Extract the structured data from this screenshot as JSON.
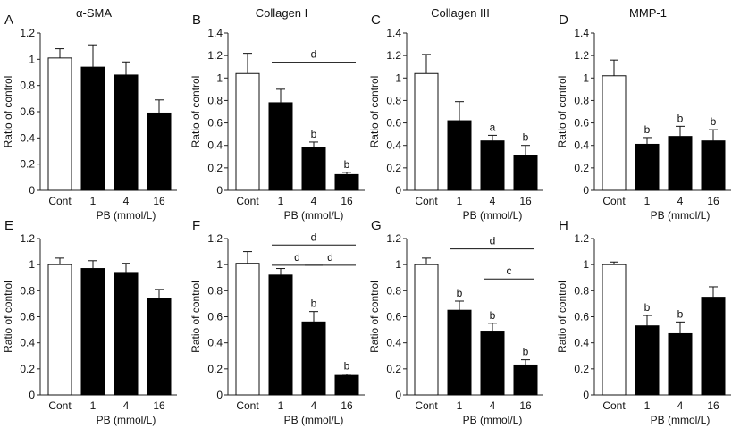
{
  "figure": {
    "xlabel": "PB (mmol/L)",
    "ylabel": "Ratio of control",
    "panels": [
      {
        "letter": "A",
        "title": "α-SMA"
      },
      {
        "letter": "B",
        "title": "Collagen I"
      },
      {
        "letter": "C",
        "title": "Collagen III"
      },
      {
        "letter": "D",
        "title": "MMP-1"
      },
      {
        "letter": "E",
        "title": ""
      },
      {
        "letter": "F",
        "title": ""
      },
      {
        "letter": "G",
        "title": ""
      },
      {
        "letter": "H",
        "title": ""
      }
    ]
  },
  "chart_data": [
    {
      "type": "bar",
      "panel": "A",
      "title": "α-SMA",
      "xlabel": "PB (mmol/L)",
      "ylabel": "Ratio of control",
      "categories": [
        "Cont",
        "1",
        "4",
        "16"
      ],
      "values": [
        1.01,
        0.94,
        0.88,
        0.59
      ],
      "errors": [
        0.07,
        0.17,
        0.1,
        0.1
      ],
      "sig_labels": [
        "",
        "",
        "",
        ""
      ],
      "brackets": [],
      "ylim": [
        0,
        1.2
      ],
      "yticks": [
        0,
        0.2,
        0.4,
        0.6,
        0.8,
        1,
        1.2
      ]
    },
    {
      "type": "bar",
      "panel": "B",
      "title": "Collagen I",
      "xlabel": "PB (mmol/L)",
      "ylabel": "Ratio of control",
      "categories": [
        "Cont",
        "1",
        "4",
        "16"
      ],
      "values": [
        1.04,
        0.78,
        0.38,
        0.14
      ],
      "errors": [
        0.18,
        0.12,
        0.05,
        0.02
      ],
      "sig_labels": [
        "",
        "",
        "b",
        "b"
      ],
      "brackets": [
        {
          "from": 1,
          "to": 3,
          "y": 1.14,
          "label": "d"
        }
      ],
      "ylim": [
        0,
        1.4
      ],
      "yticks": [
        0,
        0.2,
        0.4,
        0.6,
        0.8,
        1,
        1.2,
        1.4
      ]
    },
    {
      "type": "bar",
      "panel": "C",
      "title": "Collagen III",
      "xlabel": "PB (mmol/L)",
      "ylabel": "Ratio of control",
      "categories": [
        "Cont",
        "1",
        "4",
        "16"
      ],
      "values": [
        1.04,
        0.62,
        0.44,
        0.31
      ],
      "errors": [
        0.17,
        0.17,
        0.05,
        0.09
      ],
      "sig_labels": [
        "",
        "",
        "a",
        "b"
      ],
      "brackets": [],
      "ylim": [
        0,
        1.4
      ],
      "yticks": [
        0,
        0.2,
        0.4,
        0.6,
        0.8,
        1,
        1.2,
        1.4
      ]
    },
    {
      "type": "bar",
      "panel": "D",
      "title": "MMP-1",
      "xlabel": "PB (mmol/L)",
      "ylabel": "Ratio of control",
      "categories": [
        "Cont",
        "1",
        "4",
        "16"
      ],
      "values": [
        1.02,
        0.41,
        0.48,
        0.44
      ],
      "errors": [
        0.14,
        0.06,
        0.09,
        0.1
      ],
      "sig_labels": [
        "",
        "b",
        "b",
        "b"
      ],
      "brackets": [],
      "ylim": [
        0,
        1.4
      ],
      "yticks": [
        0,
        0.2,
        0.4,
        0.6,
        0.8,
        1,
        1.2,
        1.4
      ]
    },
    {
      "type": "bar",
      "panel": "E",
      "title": "",
      "xlabel": "PB (mmol/L)",
      "ylabel": "Ratio of control",
      "categories": [
        "Cont",
        "1",
        "4",
        "16"
      ],
      "values": [
        1.0,
        0.97,
        0.94,
        0.74
      ],
      "errors": [
        0.05,
        0.06,
        0.07,
        0.07
      ],
      "sig_labels": [
        "",
        "",
        "",
        ""
      ],
      "brackets": [],
      "ylim": [
        0,
        1.2
      ],
      "yticks": [
        0,
        0.2,
        0.4,
        0.6,
        0.8,
        1,
        1.2
      ]
    },
    {
      "type": "bar",
      "panel": "F",
      "title": "",
      "xlabel": "PB (mmol/L)",
      "ylabel": "Ratio of control",
      "categories": [
        "Cont",
        "1",
        "4",
        "16"
      ],
      "values": [
        1.01,
        0.92,
        0.56,
        0.15
      ],
      "errors": [
        0.09,
        0.05,
        0.08,
        0.01
      ],
      "sig_labels": [
        "",
        "",
        "b",
        "b"
      ],
      "brackets": [
        {
          "from": 1,
          "to": 3,
          "y": 1.15,
          "label": "d"
        },
        {
          "from": 1,
          "to": 2,
          "y": 0.995,
          "label": "d"
        },
        {
          "from": 2,
          "to": 3,
          "y": 0.995,
          "label": "d"
        }
      ],
      "ylim": [
        0,
        1.2
      ],
      "yticks": [
        0,
        0.2,
        0.4,
        0.6,
        0.8,
        1,
        1.2
      ]
    },
    {
      "type": "bar",
      "panel": "G",
      "title": "",
      "xlabel": "PB (mmol/L)",
      "ylabel": "Ratio of control",
      "categories": [
        "Cont",
        "1",
        "4",
        "16"
      ],
      "values": [
        1.0,
        0.65,
        0.49,
        0.23
      ],
      "errors": [
        0.05,
        0.07,
        0.06,
        0.04
      ],
      "sig_labels": [
        "",
        "b",
        "b",
        "b"
      ],
      "brackets": [
        {
          "from": 1,
          "to": 3,
          "y": 1.12,
          "label": "d"
        },
        {
          "from": 2,
          "to": 3,
          "y": 0.89,
          "label": "c"
        }
      ],
      "ylim": [
        0,
        1.2
      ],
      "yticks": [
        0,
        0.2,
        0.4,
        0.6,
        0.8,
        1,
        1.2
      ]
    },
    {
      "type": "bar",
      "panel": "H",
      "title": "",
      "xlabel": "PB (mmol/L)",
      "ylabel": "Ratio of control",
      "categories": [
        "Cont",
        "1",
        "4",
        "16"
      ],
      "values": [
        1.0,
        0.53,
        0.47,
        0.75
      ],
      "errors": [
        0.02,
        0.08,
        0.09,
        0.08
      ],
      "sig_labels": [
        "",
        "b",
        "b",
        ""
      ],
      "brackets": [],
      "ylim": [
        0,
        1.2
      ],
      "yticks": [
        0,
        0.2,
        0.4,
        0.6,
        0.8,
        1,
        1.2
      ]
    }
  ]
}
